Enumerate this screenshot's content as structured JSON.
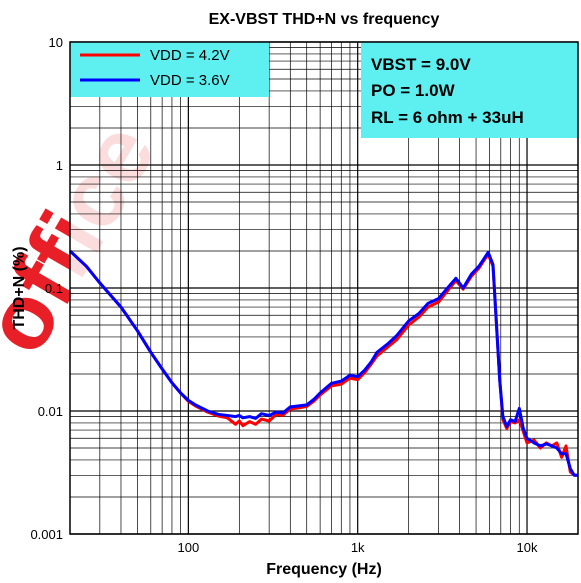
{
  "watermark": "office",
  "chart_data": {
    "type": "line",
    "title": "EX-VBST THD+N vs frequency",
    "xlabel": "Frequency (Hz)",
    "ylabel": "THD+N (%)",
    "x_scale": "log",
    "y_scale": "log",
    "xlim": [
      20,
      20000
    ],
    "ylim": [
      0.001,
      10
    ],
    "x_ticks": [
      {
        "value": 100,
        "label": "100"
      },
      {
        "value": 1000,
        "label": "1k"
      },
      {
        "value": 10000,
        "label": "10k"
      }
    ],
    "y_ticks": [
      {
        "value": 10,
        "label": "10"
      },
      {
        "value": 1,
        "label": "1"
      },
      {
        "value": 0.1,
        "label": "0.1"
      },
      {
        "value": 0.01,
        "label": "0.01"
      },
      {
        "value": 0.001,
        "label": "0.001"
      }
    ],
    "grid": true,
    "legend_position": "top-left",
    "conditions": [
      "VBST = 9.0V",
      "PO = 1.0W",
      "RL = 6 ohm + 33uH"
    ],
    "colors": {
      "legend_bg": "#5ef0f0",
      "grid": "#000000",
      "vdd42": "#ff0000",
      "vdd36": "#0000ff"
    },
    "series": [
      {
        "name": "VDD = 4.2V",
        "color": "#ff0000",
        "x": [
          20,
          25,
          30,
          40,
          50,
          60,
          70,
          80,
          90,
          100,
          110,
          130,
          150,
          170,
          190,
          200,
          210,
          230,
          250,
          270,
          300,
          330,
          360,
          400,
          450,
          500,
          550,
          600,
          700,
          800,
          900,
          1000,
          1100,
          1200,
          1300,
          1500,
          1700,
          2000,
          2300,
          2600,
          3000,
          3500,
          3800,
          4200,
          4700,
          5200,
          5600,
          5900,
          6300,
          6600,
          6900,
          7200,
          7600,
          8000,
          8500,
          9000,
          9500,
          10000,
          11000,
          12000,
          13000,
          14000,
          15000,
          16000,
          17000,
          18000,
          19000,
          20000
        ],
        "y": [
          0.2,
          0.15,
          0.11,
          0.07,
          0.045,
          0.03,
          0.022,
          0.017,
          0.014,
          0.012,
          0.011,
          0.0098,
          0.0091,
          0.0088,
          0.0078,
          0.0083,
          0.0076,
          0.0082,
          0.0078,
          0.0086,
          0.0083,
          0.0094,
          0.0092,
          0.0104,
          0.0106,
          0.0109,
          0.012,
          0.0135,
          0.016,
          0.0165,
          0.0185,
          0.018,
          0.0205,
          0.024,
          0.028,
          0.033,
          0.038,
          0.05,
          0.058,
          0.07,
          0.077,
          0.1,
          0.115,
          0.098,
          0.125,
          0.145,
          0.17,
          0.188,
          0.15,
          0.05,
          0.018,
          0.0085,
          0.0072,
          0.0082,
          0.008,
          0.0085,
          0.0068,
          0.0055,
          0.0058,
          0.005,
          0.0055,
          0.0052,
          0.0055,
          0.0042,
          0.0052,
          0.0032,
          0.003,
          0.003
        ]
      },
      {
        "name": "VDD = 3.6V",
        "color": "#0000ff",
        "x": [
          20,
          25,
          30,
          40,
          50,
          60,
          70,
          80,
          90,
          100,
          110,
          130,
          150,
          170,
          190,
          200,
          210,
          230,
          250,
          270,
          300,
          330,
          360,
          400,
          450,
          500,
          550,
          600,
          700,
          800,
          900,
          1000,
          1100,
          1200,
          1300,
          1500,
          1700,
          2000,
          2300,
          2600,
          3000,
          3500,
          3800,
          4200,
          4700,
          5200,
          5600,
          5900,
          6300,
          6600,
          6900,
          7200,
          7600,
          8000,
          8500,
          9000,
          9500,
          10000,
          11000,
          12000,
          13000,
          14000,
          15000,
          16000,
          17000,
          18000,
          19000,
          20000
        ],
        "y": [
          0.2,
          0.15,
          0.11,
          0.07,
          0.045,
          0.03,
          0.022,
          0.017,
          0.014,
          0.0122,
          0.0112,
          0.01,
          0.0094,
          0.0092,
          0.009,
          0.0092,
          0.0088,
          0.009,
          0.0087,
          0.0095,
          0.0092,
          0.0098,
          0.0096,
          0.0108,
          0.011,
          0.0112,
          0.0124,
          0.014,
          0.0168,
          0.0175,
          0.0195,
          0.019,
          0.0215,
          0.025,
          0.03,
          0.035,
          0.041,
          0.054,
          0.062,
          0.075,
          0.082,
          0.105,
          0.12,
          0.1,
          0.13,
          0.15,
          0.175,
          0.195,
          0.155,
          0.05,
          0.018,
          0.009,
          0.0075,
          0.0085,
          0.0082,
          0.0105,
          0.0072,
          0.006,
          0.0055,
          0.0052,
          0.0054,
          0.0052,
          0.005,
          0.0045,
          0.0045,
          0.0034,
          0.003,
          0.003
        ]
      }
    ]
  }
}
